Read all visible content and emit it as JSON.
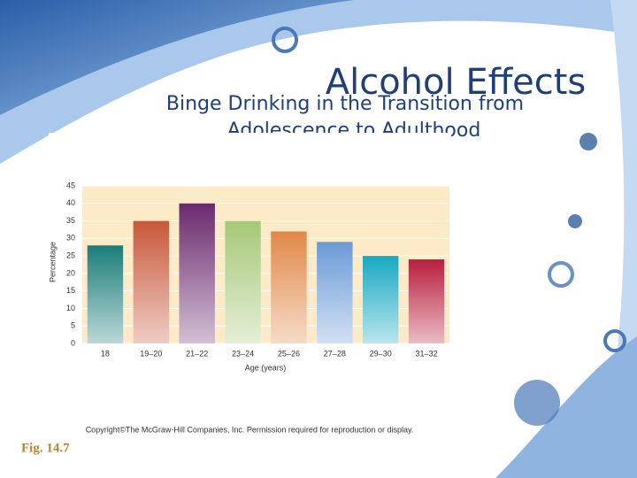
{
  "title": "Alcohol Effects",
  "subtitle_lines": [
    "Binge Drinking in the Transition from",
    "Adolescence to Adulthood"
  ],
  "figure_label": "Fig. 14.7",
  "chart_data": {
    "type": "bar",
    "categories": [
      "18",
      "19–20",
      "21–22",
      "23–24",
      "25–26",
      "27–28",
      "29–30",
      "31–32"
    ],
    "values": [
      28,
      35,
      40,
      35,
      32,
      29,
      25,
      24
    ],
    "colors": [
      "#1a7d7a",
      "#c8583a",
      "#6a2a6e",
      "#a6c878",
      "#e08848",
      "#6a9ad6",
      "#18a8c2",
      "#b81e3e"
    ],
    "x_label": "Age (years)",
    "y_label": "Percentage",
    "ylim": [
      0,
      45
    ],
    "yticks": [
      0,
      5,
      10,
      15,
      20,
      25,
      30,
      35,
      40,
      45
    ],
    "grid": true,
    "footnote": "Copyright©The McGraw-Hill Companies, Inc. Permission required for reproduction or display."
  }
}
